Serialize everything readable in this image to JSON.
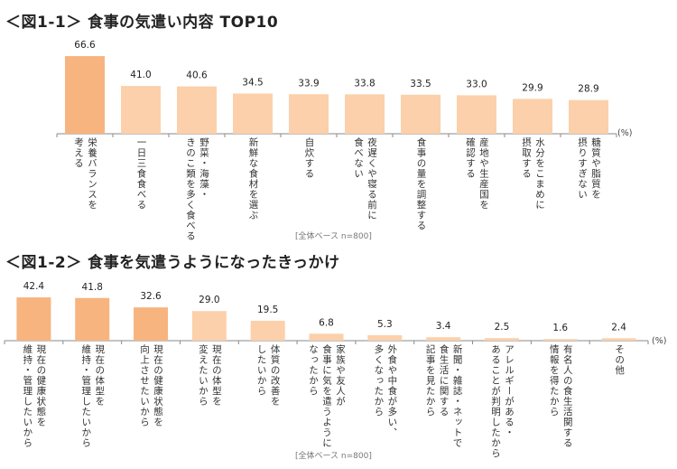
{
  "chart_data": [
    {
      "type": "bar",
      "title": "＜図1-1＞ 食事の気遣い内容 TOP10",
      "unit": "(%)",
      "note": "[全体ベース n=800]",
      "categories": [
        "栄養バランスを\n考える",
        "一日三食食べる",
        "野菜・海藻・\nきのこ類を多く食べる",
        "新鮮な食材を選ぶ",
        "自炊する",
        "夜遅くや寝る前に\n食べない",
        "食事の量を調整する",
        "産地や生産国を\n確認する",
        "水分をこまめに\n摂取する",
        "糖質や脂質を\n摂りすぎない"
      ],
      "values": [
        66.6,
        41.0,
        40.6,
        34.5,
        33.9,
        33.8,
        33.5,
        33.0,
        29.9,
        28.9
      ],
      "highlight_count": 1,
      "colors": {
        "highlight": "#f7b47f",
        "normal": "#fbd0aa"
      }
    },
    {
      "type": "bar",
      "title": "＜図1-2＞ 食事を気遣うようになったきっかけ",
      "unit": "(%)",
      "note": "[全体ベース n=800]",
      "categories": [
        "現在の健康状態を\n維持・管理したいから",
        "現在の体型を\n維持・管理したいから",
        "現在の健康状態を\n向上させたいから",
        "現在の体型を\n変えたいから",
        "体質の改善を\nしたいから",
        "家族や友人が\n食事に気を遣うように\nなったから",
        "外食や中食が多い、\n多くなったから",
        "新聞・雑誌・ネットで\n食生活に関する\n記事を見たから",
        "アレルギーがある・\nあることが判明したから",
        "有名人の食生活関する\n情報を得たから",
        "その他"
      ],
      "values": [
        42.4,
        41.8,
        32.6,
        29.0,
        19.5,
        6.8,
        5.3,
        3.4,
        2.5,
        1.6,
        2.4
      ],
      "highlight_count": 3,
      "colors": {
        "highlight": "#f7b47f",
        "normal": "#fbd0aa"
      }
    }
  ]
}
